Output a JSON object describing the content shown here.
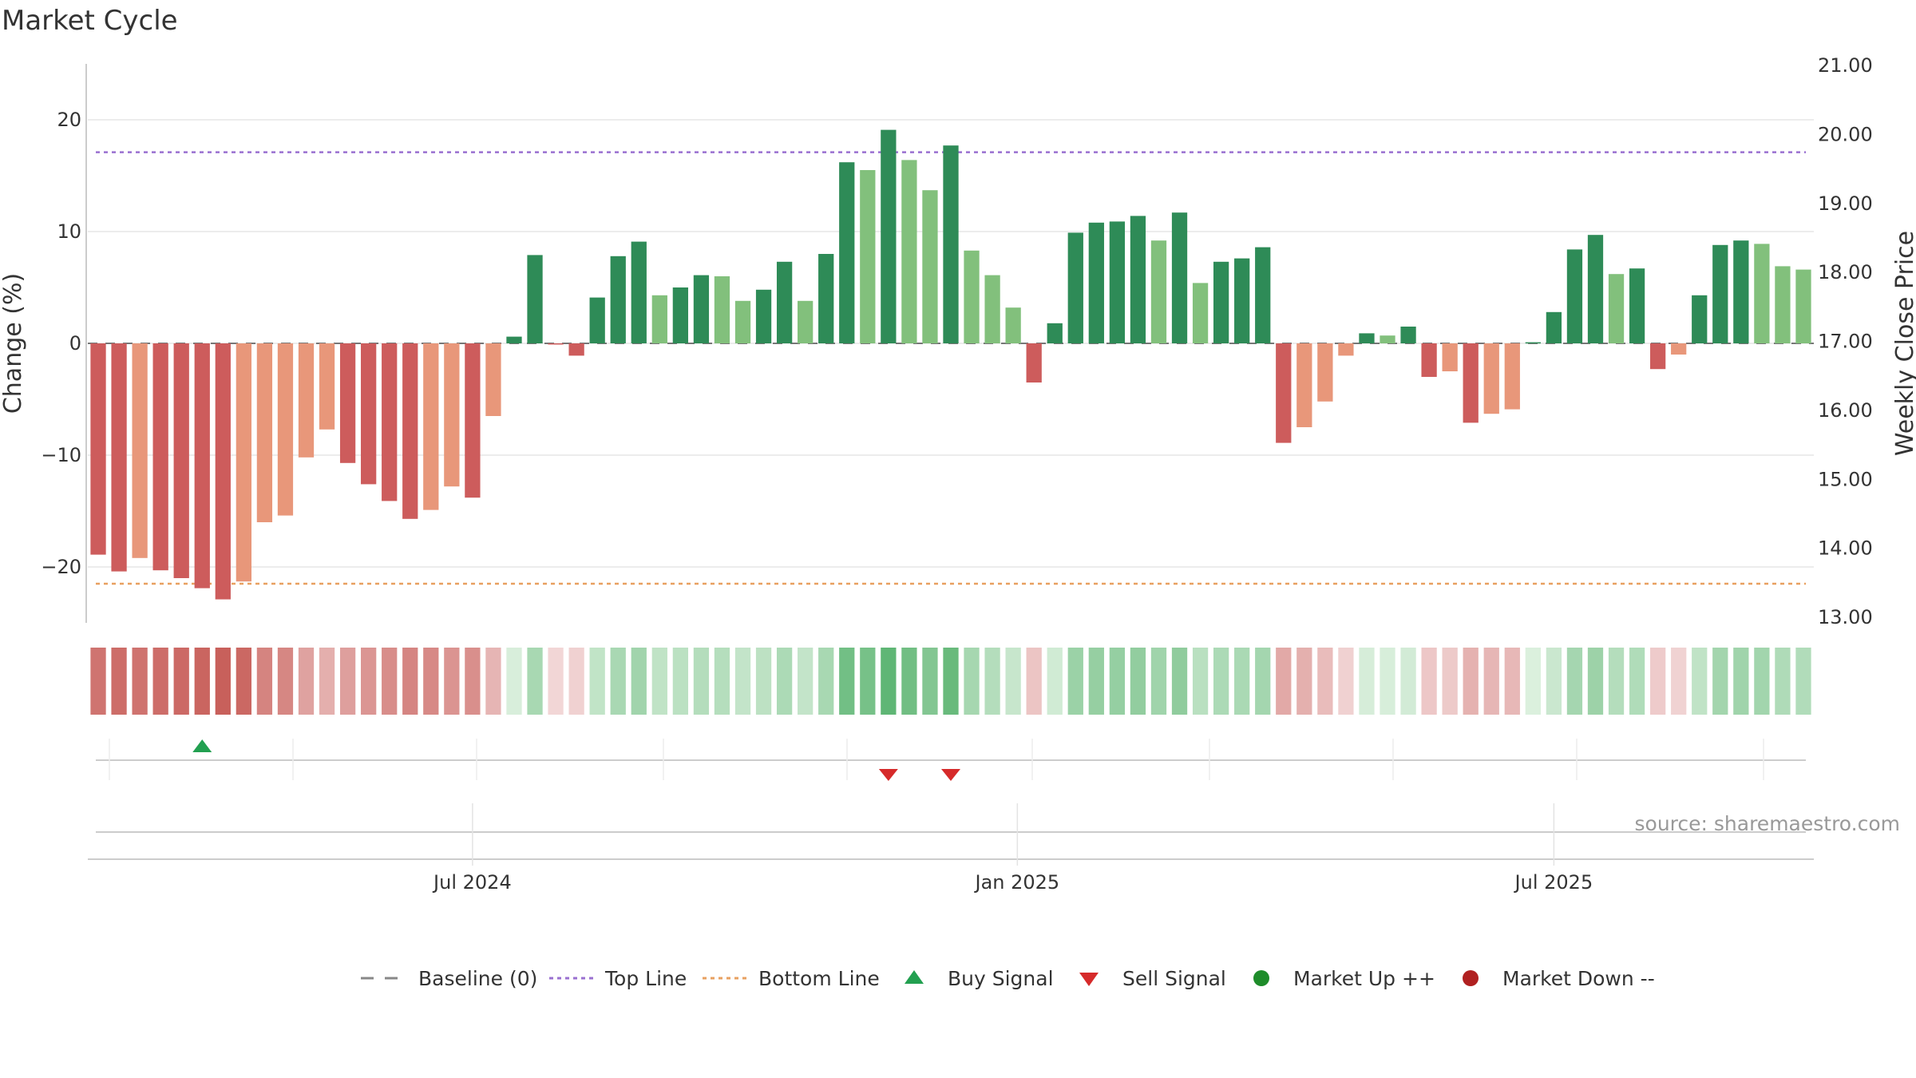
{
  "chart_data": {
    "type": "bar",
    "title": "Market Cycle",
    "ylabel": "Change (%)",
    "y2label": "Weekly Close Price",
    "ylim": [
      -25,
      25
    ],
    "yticks": [
      20,
      10,
      0,
      -10,
      -20
    ],
    "ytick_labels": [
      "20",
      "10",
      "0",
      "−10",
      "−20"
    ],
    "y2ticks": [
      "21.00",
      "20.00",
      "19.00",
      "18.00",
      "17.00",
      "16.00",
      "15.00",
      "14.00",
      "13.00"
    ],
    "top_line": 17.1,
    "bottom_line": -21.5,
    "x_tick_labels": [
      "Jul 2024",
      "Jan 2025",
      "Jul 2025"
    ],
    "x_tick_bar_index": [
      18.5,
      44.7,
      70.5
    ],
    "grid": true,
    "legend_position": "bottom-center",
    "values": [
      -18.9,
      -20.4,
      -19.2,
      -20.3,
      -21,
      -21.9,
      -22.9,
      -21.3,
      -16,
      -15.4,
      -10.2,
      -7.7,
      -10.7,
      -12.6,
      -14.1,
      -15.7,
      -14.9,
      -12.8,
      -13.8,
      -6.5,
      0.6,
      7.9,
      -0.1,
      -1.1,
      4.1,
      7.8,
      9.1,
      4.3,
      5,
      6.1,
      6,
      3.8,
      4.8,
      7.3,
      3.8,
      8,
      16.2,
      15.5,
      19.1,
      16.4,
      13.7,
      17.7,
      8.3,
      6.1,
      3.2,
      -3.5,
      1.8,
      9.9,
      10.8,
      10.9,
      11.4,
      9.2,
      11.7,
      5.4,
      7.3,
      7.6,
      8.6,
      -8.9,
      -7.5,
      -5.2,
      -1.1,
      0.9,
      0.7,
      1.5,
      -3,
      -2.5,
      -7.1,
      -6.3,
      -5.9,
      0.1,
      2.8,
      8.4,
      9.7,
      6.2,
      6.7,
      -2.3,
      -1,
      4.3,
      8.8,
      9.2,
      8.9,
      6.9,
      6.6
    ],
    "signals": {
      "buy": [
        5
      ],
      "sell": [
        38,
        41
      ]
    },
    "legend": [
      {
        "label": "Baseline (0)",
        "style": "dashed",
        "color": "#888888"
      },
      {
        "label": "Top Line",
        "style": "dotted",
        "color": "#9a70d0"
      },
      {
        "label": "Bottom Line",
        "style": "dotted",
        "color": "#e8a060"
      },
      {
        "label": "Buy Signal",
        "style": "triangle-up",
        "color": "#22a050"
      },
      {
        "label": "Sell Signal",
        "style": "triangle-down",
        "color": "#d62a2a"
      },
      {
        "label": "Market Up ++",
        "style": "circle",
        "color": "#1e8c2a"
      },
      {
        "label": "Market Down --",
        "style": "circle",
        "color": "#b02020"
      }
    ],
    "source": "source: sharemaestro.com"
  }
}
